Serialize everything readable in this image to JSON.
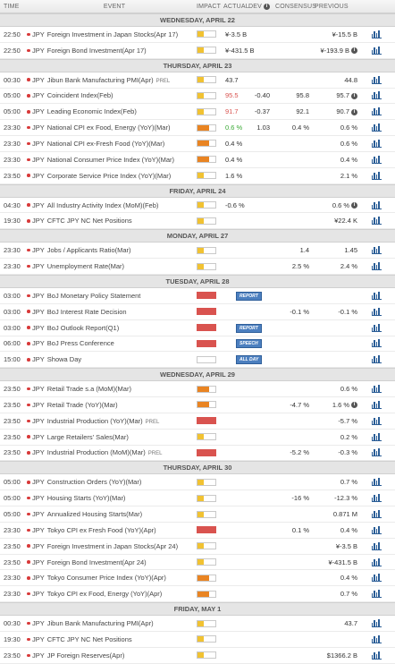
{
  "header": {
    "time": "TIME",
    "event": "EVENT",
    "impact": "IMPACT",
    "actual": "ACTUAL",
    "dev": "DEV",
    "consensus": "CONSENSUS",
    "previous": "PREVIOUS"
  },
  "colors": {
    "low": "#f1c232",
    "medium": "#e98422",
    "high": "#d9534f",
    "positive": "#3aa935",
    "negative": "#d9534f",
    "accent": "#2a5d96"
  },
  "days": [
    {
      "label": "WEDNESDAY, APRIL 22",
      "events": [
        {
          "time": "22:50",
          "cur": "JPY",
          "name": "Foreign Investment in Japan Stocks(Apr 17)",
          "impact": "low",
          "actual": "¥-3.5 B",
          "dev": "",
          "cons": "",
          "prev": "¥-15.5 B"
        },
        {
          "time": "22:50",
          "cur": "JPY",
          "name": "Foreign Bond Investment(Apr 17)",
          "impact": "low",
          "actual": "¥-431.5 B",
          "dev": "",
          "cons": "",
          "prev": "¥-193.9 B",
          "prev_info": true
        }
      ]
    },
    {
      "label": "THURSDAY, APRIL 23",
      "events": [
        {
          "time": "00:30",
          "cur": "JPY",
          "name": "Jibun Bank Manufacturing PMI(Apr)",
          "prel": "PREL",
          "impact": "low",
          "actual": "43.7",
          "dev": "",
          "cons": "",
          "prev": "44.8"
        },
        {
          "time": "05:00",
          "cur": "JPY",
          "name": "Coincident Index(Feb)",
          "impact": "low",
          "actual": "95.5",
          "actual_color": "red",
          "dev": "-0.40",
          "cons": "95.8",
          "prev": "95.7",
          "prev_info": true
        },
        {
          "time": "05:00",
          "cur": "JPY",
          "name": "Leading Economic Index(Feb)",
          "impact": "low",
          "actual": "91.7",
          "actual_color": "red",
          "dev": "-0.37",
          "cons": "92.1",
          "prev": "90.7",
          "prev_info": true
        },
        {
          "time": "23:30",
          "cur": "JPY",
          "name": "National CPI ex Food, Energy (YoY)(Mar)",
          "impact": "med",
          "actual": "0.6 %",
          "actual_color": "green",
          "dev": "1.03",
          "cons": "0.4 %",
          "prev": "0.6 %"
        },
        {
          "time": "23:30",
          "cur": "JPY",
          "name": "National CPI ex-Fresh Food (YoY)(Mar)",
          "impact": "med",
          "actual": "0.4 %",
          "dev": "",
          "cons": "",
          "prev": "0.6 %"
        },
        {
          "time": "23:30",
          "cur": "JPY",
          "name": "National Consumer Price Index (YoY)(Mar)",
          "impact": "med",
          "actual": "0.4 %",
          "dev": "",
          "cons": "",
          "prev": "0.4 %"
        },
        {
          "time": "23:50",
          "cur": "JPY",
          "name": "Corporate Service Price Index (YoY)(Mar)",
          "impact": "low",
          "actual": "1.6 %",
          "dev": "",
          "cons": "",
          "prev": "2.1 %"
        }
      ]
    },
    {
      "label": "FRIDAY, APRIL 24",
      "events": [
        {
          "time": "04:30",
          "cur": "JPY",
          "name": "All Industry Activity Index (MoM)(Feb)",
          "impact": "low",
          "actual": "-0.6 %",
          "dev": "",
          "cons": "",
          "prev": "0.6 %",
          "prev_info": true
        },
        {
          "time": "19:30",
          "cur": "JPY",
          "name": "CFTC JPY NC Net Positions",
          "impact": "low",
          "actual": "",
          "dev": "",
          "cons": "",
          "prev": "¥22.4 K"
        }
      ]
    },
    {
      "label": "MONDAY, APRIL 27",
      "events": [
        {
          "time": "23:30",
          "cur": "JPY",
          "name": "Jobs / Applicants Ratio(Mar)",
          "impact": "low",
          "actual": "",
          "dev": "",
          "cons": "1.4",
          "prev": "1.45"
        },
        {
          "time": "23:30",
          "cur": "JPY",
          "name": "Unemployment Rate(Mar)",
          "impact": "low",
          "actual": "",
          "dev": "",
          "cons": "2.5 %",
          "prev": "2.4 %"
        }
      ]
    },
    {
      "label": "TUESDAY, APRIL 28",
      "events": [
        {
          "time": "03:00",
          "cur": "JPY",
          "name": "BoJ Monetary Policy Statement",
          "impact": "high",
          "pill": "REPORT"
        },
        {
          "time": "03:00",
          "cur": "JPY",
          "name": "BoJ Interest Rate Decision",
          "impact": "high",
          "actual": "",
          "dev": "",
          "cons": "-0.1 %",
          "prev": "-0.1 %"
        },
        {
          "time": "03:00",
          "cur": "JPY",
          "name": "BoJ Outlook Report(Q1)",
          "impact": "high",
          "pill": "REPORT"
        },
        {
          "time": "06:00",
          "cur": "JPY",
          "name": "BoJ Press Conference",
          "impact": "high",
          "pill": "SPEECH"
        },
        {
          "time": "15:00",
          "cur": "JPY",
          "name": "Showa Day",
          "impact": "none",
          "pill": "ALL DAY"
        }
      ]
    },
    {
      "label": "WEDNESDAY, APRIL 29",
      "events": [
        {
          "time": "23:50",
          "cur": "JPY",
          "name": "Retail Trade s.a (MoM)(Mar)",
          "impact": "med",
          "actual": "",
          "dev": "",
          "cons": "",
          "prev": "0.6 %"
        },
        {
          "time": "23:50",
          "cur": "JPY",
          "name": "Retail Trade (YoY)(Mar)",
          "impact": "med",
          "actual": "",
          "dev": "",
          "cons": "-4.7 %",
          "prev": "1.6 %",
          "prev_info": true
        },
        {
          "time": "23:50",
          "cur": "JPY",
          "name": "Industrial Production (YoY)(Mar)",
          "prel": "PREL",
          "impact": "high",
          "actual": "",
          "dev": "",
          "cons": "",
          "prev": "-5.7 %"
        },
        {
          "time": "23:50",
          "cur": "JPY",
          "name": "Large Retailers' Sales(Mar)",
          "impact": "low",
          "actual": "",
          "dev": "",
          "cons": "",
          "prev": "0.2 %"
        },
        {
          "time": "23:50",
          "cur": "JPY",
          "name": "Industrial Production (MoM)(Mar)",
          "prel": "PREL",
          "impact": "high",
          "actual": "",
          "dev": "",
          "cons": "-5.2 %",
          "prev": "-0.3 %"
        }
      ]
    },
    {
      "label": "THURSDAY, APRIL 30",
      "events": [
        {
          "time": "05:00",
          "cur": "JPY",
          "name": "Construction Orders (YoY)(Mar)",
          "impact": "low",
          "actual": "",
          "dev": "",
          "cons": "",
          "prev": "0.7 %"
        },
        {
          "time": "05:00",
          "cur": "JPY",
          "name": "Housing Starts (YoY)(Mar)",
          "impact": "low",
          "actual": "",
          "dev": "",
          "cons": "-16 %",
          "prev": "-12.3 %"
        },
        {
          "time": "05:00",
          "cur": "JPY",
          "name": "Annualized Housing Starts(Mar)",
          "impact": "low",
          "actual": "",
          "dev": "",
          "cons": "",
          "prev": "0.871 M"
        },
        {
          "time": "23:30",
          "cur": "JPY",
          "name": "Tokyo CPI ex Fresh Food (YoY)(Apr)",
          "impact": "high",
          "actual": "",
          "dev": "",
          "cons": "0.1 %",
          "prev": "0.4 %"
        },
        {
          "time": "23:50",
          "cur": "JPY",
          "name": "Foreign Investment in Japan Stocks(Apr 24)",
          "impact": "low",
          "actual": "",
          "dev": "",
          "cons": "",
          "prev": "¥-3.5 B"
        },
        {
          "time": "23:50",
          "cur": "JPY",
          "name": "Foreign Bond Investment(Apr 24)",
          "impact": "low",
          "actual": "",
          "dev": "",
          "cons": "",
          "prev": "¥-431.5 B"
        },
        {
          "time": "23:30",
          "cur": "JPY",
          "name": "Tokyo Consumer Price Index (YoY)(Apr)",
          "impact": "med",
          "actual": "",
          "dev": "",
          "cons": "",
          "prev": "0.4 %"
        },
        {
          "time": "23:30",
          "cur": "JPY",
          "name": "Tokyo CPI ex Food, Energy (YoY)(Apr)",
          "impact": "med",
          "actual": "",
          "dev": "",
          "cons": "",
          "prev": "0.7 %"
        }
      ]
    },
    {
      "label": "FRIDAY, MAY 1",
      "events": [
        {
          "time": "00:30",
          "cur": "JPY",
          "name": "Jibun Bank Manufacturing PMI(Apr)",
          "impact": "low",
          "actual": "",
          "dev": "",
          "cons": "",
          "prev": "43.7"
        },
        {
          "time": "19:30",
          "cur": "JPY",
          "name": "CFTC JPY NC Net Positions",
          "impact": "low",
          "actual": "",
          "dev": "",
          "cons": "",
          "prev": ""
        },
        {
          "time": "23:50",
          "cur": "JPY",
          "name": "JP Foreign Reserves(Apr)",
          "impact": "low",
          "actual": "",
          "dev": "",
          "cons": "",
          "prev": "$1366.2 B"
        }
      ]
    }
  ]
}
